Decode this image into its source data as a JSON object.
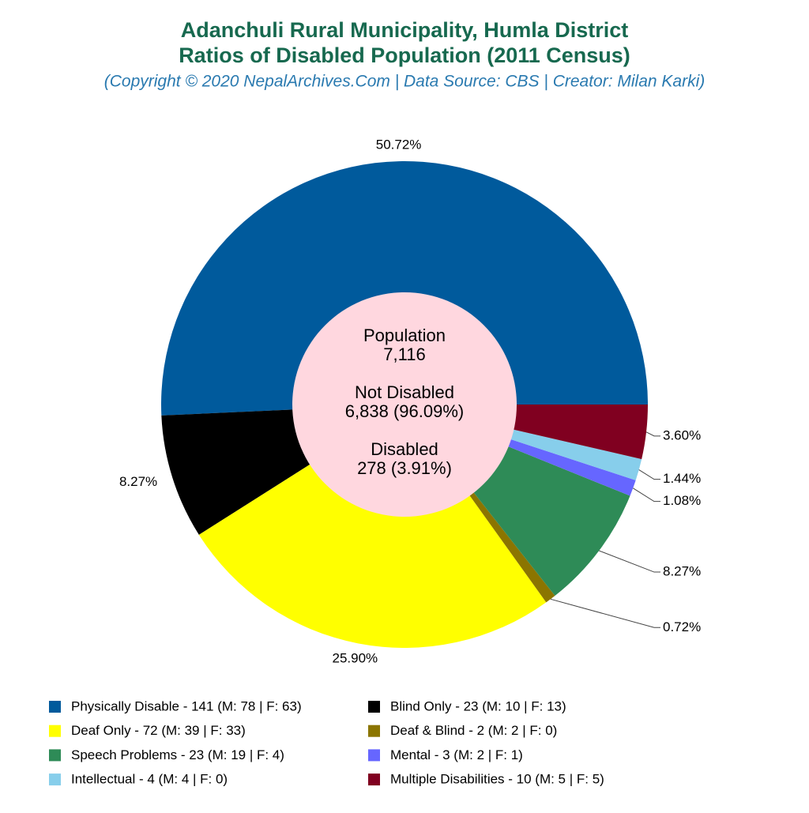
{
  "chart_data": {
    "type": "donut",
    "title": "Adanchuli Rural Municipality, Humla District",
    "subtitle": "Ratios of Disabled Population (2011 Census)",
    "caption": "(Copyright © 2020 NepalArchives.Com | Data Source: CBS | Creator: Milan Karki)",
    "categories": [
      "Physically Disable - 141 (M: 78 | F: 63)",
      "Blind Only - 23 (M: 10 | F: 13)",
      "Deaf Only - 72 (M: 39 | F: 33)",
      "Deaf & Blind - 2 (M: 2 | F: 0)",
      "Speech Problems - 23 (M: 19 | F: 4)",
      "Mental - 3 (M: 2 | F: 1)",
      "Intellectual - 4 (M: 4 | F: 0)",
      "Multiple Disabilities - 10 (M: 5 | F: 5)"
    ],
    "values": [
      50.72,
      8.27,
      25.9,
      0.72,
      8.27,
      1.08,
      1.44,
      3.6
    ],
    "value_labels": [
      "50.72%",
      "8.27%",
      "25.90%",
      "0.72%",
      "8.27%",
      "1.08%",
      "1.44%",
      "3.60%"
    ],
    "colors": [
      "#005a9c",
      "#000000",
      "#ffff00",
      "#8b7500",
      "#2e8b57",
      "#6666ff",
      "#87ceeb",
      "#800020"
    ],
    "center_text": [
      "Population",
      "7,116",
      "Not Disabled",
      "6,838 (96.09%)",
      "Disabled",
      "278 (3.91%)"
    ]
  }
}
